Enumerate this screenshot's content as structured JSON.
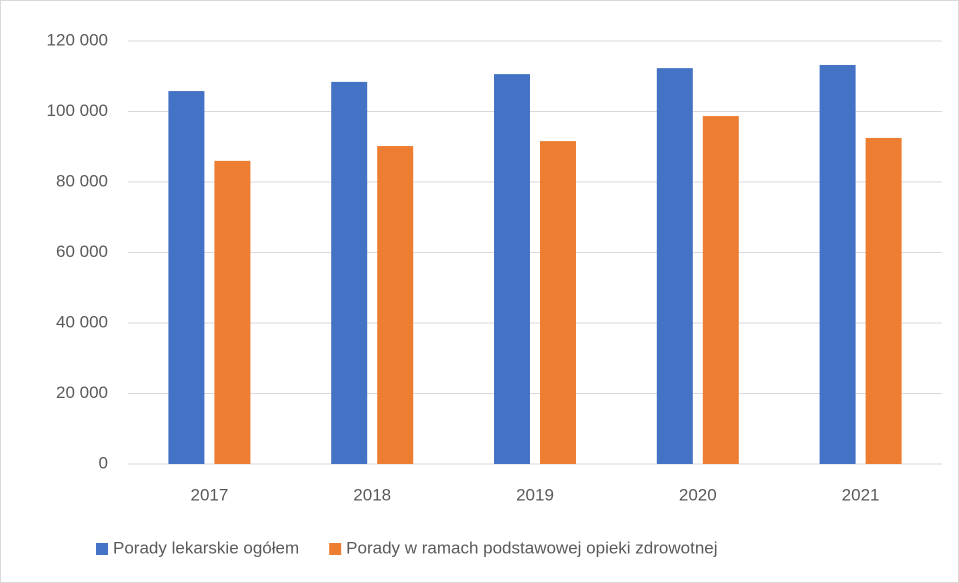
{
  "chart_data": {
    "type": "bar",
    "categories": [
      "2017",
      "2018",
      "2019",
      "2020",
      "2021"
    ],
    "series": [
      {
        "name": "Porady lekarskie ogółem",
        "color": "#4472c4",
        "values": [
          105800,
          108400,
          110600,
          112300,
          113200
        ]
      },
      {
        "name": "Porady w ramach podstawowej opieki zdrowotnej",
        "color": "#ed7d31",
        "values": [
          86000,
          90200,
          91600,
          98700,
          92500
        ]
      }
    ],
    "ylim": [
      0,
      120000
    ],
    "yticks": [
      0,
      {
        "value": 20000,
        "label": "20 000"
      },
      {
        "value": 40000,
        "label": "40 000"
      },
      {
        "value": 60000,
        "label": "60 000"
      },
      {
        "value": 80000,
        "label": "80 000"
      },
      {
        "value": 100000,
        "label": "100 000"
      },
      {
        "value": 120000,
        "label": "120 000"
      }
    ],
    "grid": true,
    "legend": "bottom"
  }
}
